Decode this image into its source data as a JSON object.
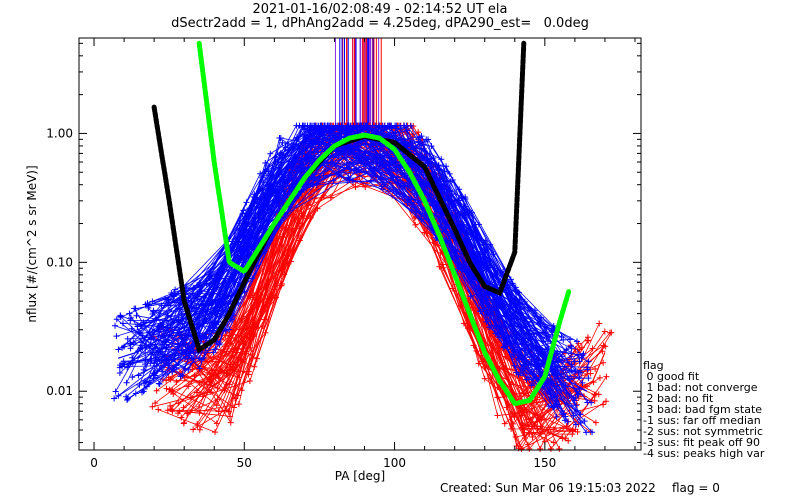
{
  "title_line1": "2021-01-16/02:08:49 - 02:14:52 UT ela",
  "title_line2": "dSectr2add = 1, dPhAng2add = 4.25deg, dPA290_est=   0.0deg",
  "footer": {
    "created": "Created: Sun Mar 06 19:15:03 2022",
    "flag": "flag = 0"
  },
  "legend": {
    "title": "flag",
    "entries": [
      " 0 good fit",
      " 1 bad: not converge",
      " 2 bad: no fit",
      " 3 bad: bad fgm state",
      "-1 sus: far off median",
      "-2 sus: not symmetric",
      "-3 sus: fit peak off 90",
      "-4 sus: peaks high var"
    ]
  },
  "colors": {
    "red_series": "#ff0000",
    "blue_series": "#0000ff",
    "black_fit": "#000000",
    "green_fit": "#00ff00",
    "purple_spikes": "#8a2be2"
  },
  "chart_data": {
    "type": "line",
    "xlabel": "PA [deg]",
    "ylabel": "nflux [#/(cm^2 s sr MeV)]",
    "xlim": [
      -5,
      182
    ],
    "ylim": [
      0.0035,
      5.5
    ],
    "yscale": "log",
    "x_ticks": [
      0,
      50,
      100,
      150
    ],
    "x_tick_labels": [
      "0",
      "50",
      "100",
      "150"
    ],
    "y_ticks": [
      0.01,
      0.1,
      1.0
    ],
    "y_tick_labels": [
      "0.01",
      "0.10",
      "1.00"
    ],
    "grid": false,
    "series": [
      {
        "color": "red",
        "x": [
          22,
          28,
          34,
          40,
          46,
          52,
          58,
          64,
          70,
          76,
          82,
          88,
          94,
          100,
          106,
          112,
          118,
          124,
          130,
          136,
          142,
          148,
          154,
          160,
          166,
          170
        ],
        "y": [
          0.016,
          0.014,
          0.012,
          0.011,
          0.014,
          0.03,
          0.08,
          0.2,
          0.4,
          0.65,
          0.85,
          0.95,
          0.9,
          0.75,
          0.5,
          0.3,
          0.15,
          0.07,
          0.03,
          0.012,
          0.008,
          0.006,
          0.008,
          0.01,
          0.012,
          0.02
        ]
      },
      {
        "color": "blue",
        "x": [
          8,
          14,
          20,
          26,
          32,
          38,
          44,
          50,
          56,
          62,
          68,
          74,
          80,
          86,
          92,
          98,
          104,
          110,
          116,
          122,
          128,
          134,
          140,
          146,
          152,
          158,
          164
        ],
        "y": [
          0.018,
          0.02,
          0.024,
          0.028,
          0.03,
          0.035,
          0.06,
          0.12,
          0.25,
          0.45,
          0.7,
          0.85,
          0.92,
          0.95,
          0.9,
          0.8,
          0.62,
          0.45,
          0.28,
          0.17,
          0.09,
          0.05,
          0.03,
          0.02,
          0.015,
          0.012,
          0.01
        ]
      },
      {
        "color": "black",
        "x": [
          20,
          25,
          30,
          35,
          40,
          45,
          50,
          55,
          60,
          70,
          80,
          90,
          100,
          110,
          120,
          125,
          130,
          135,
          140,
          143
        ],
        "y": [
          1.6,
          0.3,
          0.05,
          0.021,
          0.025,
          0.04,
          0.07,
          0.12,
          0.2,
          0.45,
          0.8,
          0.95,
          0.85,
          0.55,
          0.18,
          0.1,
          0.065,
          0.058,
          0.12,
          5.0
        ]
      },
      {
        "color": "green",
        "x": [
          35,
          40,
          45,
          50,
          55,
          60,
          65,
          70,
          75,
          80,
          85,
          90,
          95,
          100,
          105,
          110,
          115,
          120,
          125,
          130,
          135,
          140,
          145,
          150,
          155,
          158
        ],
        "y": [
          5.0,
          0.6,
          0.1,
          0.085,
          0.13,
          0.2,
          0.3,
          0.45,
          0.62,
          0.8,
          0.92,
          0.97,
          0.92,
          0.75,
          0.5,
          0.3,
          0.16,
          0.08,
          0.04,
          0.02,
          0.012,
          0.008,
          0.0085,
          0.013,
          0.035,
          0.06
        ]
      }
    ]
  }
}
